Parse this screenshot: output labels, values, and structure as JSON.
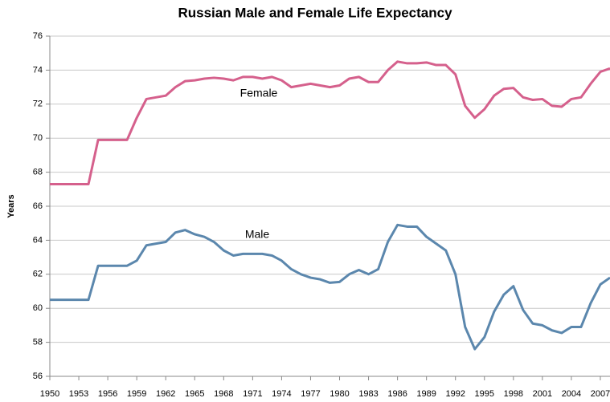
{
  "chart_data": {
    "type": "line",
    "title": "Russian Male and Female Life Expectancy",
    "y_label": "Years",
    "x": [
      1950,
      1951,
      1952,
      1953,
      1954,
      1955,
      1956,
      1957,
      1958,
      1959,
      1960,
      1961,
      1962,
      1963,
      1964,
      1965,
      1966,
      1967,
      1968,
      1969,
      1970,
      1971,
      1972,
      1973,
      1974,
      1975,
      1976,
      1977,
      1978,
      1979,
      1980,
      1981,
      1982,
      1983,
      1984,
      1985,
      1986,
      1987,
      1988,
      1989,
      1990,
      1991,
      1992,
      1993,
      1994,
      1995,
      1996,
      1997,
      1998,
      1999,
      2000,
      2001,
      2002,
      2003,
      2004,
      2005,
      2006,
      2007,
      2008
    ],
    "series": [
      {
        "name": "Female",
        "color": "#d5608c",
        "values": [
          67.3,
          67.3,
          67.3,
          67.3,
          67.3,
          69.9,
          69.9,
          69.9,
          69.9,
          71.2,
          72.3,
          72.4,
          72.5,
          73.0,
          73.35,
          73.4,
          73.5,
          73.55,
          73.5,
          73.4,
          73.6,
          73.6,
          73.5,
          73.6,
          73.4,
          73.0,
          73.1,
          73.2,
          73.1,
          73.0,
          73.1,
          73.5,
          73.6,
          73.3,
          73.3,
          74.0,
          74.5,
          74.4,
          74.4,
          74.45,
          74.3,
          74.3,
          73.75,
          71.9,
          71.2,
          71.7,
          72.5,
          72.9,
          72.95,
          72.4,
          72.25,
          72.3,
          71.9,
          71.85,
          72.3,
          72.4,
          73.2,
          73.9,
          74.1
        ]
      },
      {
        "name": "Male",
        "color": "#5b87ad",
        "values": [
          60.5,
          60.5,
          60.5,
          60.5,
          60.5,
          62.5,
          62.5,
          62.5,
          62.5,
          62.8,
          63.7,
          63.8,
          63.9,
          64.45,
          64.6,
          64.35,
          64.2,
          63.9,
          63.4,
          63.1,
          63.2,
          63.2,
          63.2,
          63.1,
          62.8,
          62.3,
          62.0,
          61.8,
          61.7,
          61.5,
          61.55,
          62.0,
          62.25,
          62.0,
          62.3,
          63.9,
          64.9,
          64.8,
          64.8,
          64.2,
          63.8,
          63.4,
          62.0,
          58.9,
          57.6,
          58.3,
          59.8,
          60.8,
          61.3,
          59.9,
          59.1,
          59.0,
          58.7,
          58.55,
          58.9,
          58.9,
          60.3,
          61.4,
          61.8
        ]
      }
    ],
    "xlim": [
      1950,
      2008
    ],
    "xticks": [
      1950,
      1953,
      1956,
      1959,
      1962,
      1965,
      1968,
      1971,
      1974,
      1977,
      1980,
      1983,
      1986,
      1989,
      1992,
      1995,
      1998,
      2001,
      2004,
      2007
    ],
    "ylim": [
      56,
      76
    ],
    "yticks": [
      56,
      58,
      60,
      62,
      64,
      66,
      68,
      70,
      72,
      74,
      76
    ],
    "grid": true
  }
}
